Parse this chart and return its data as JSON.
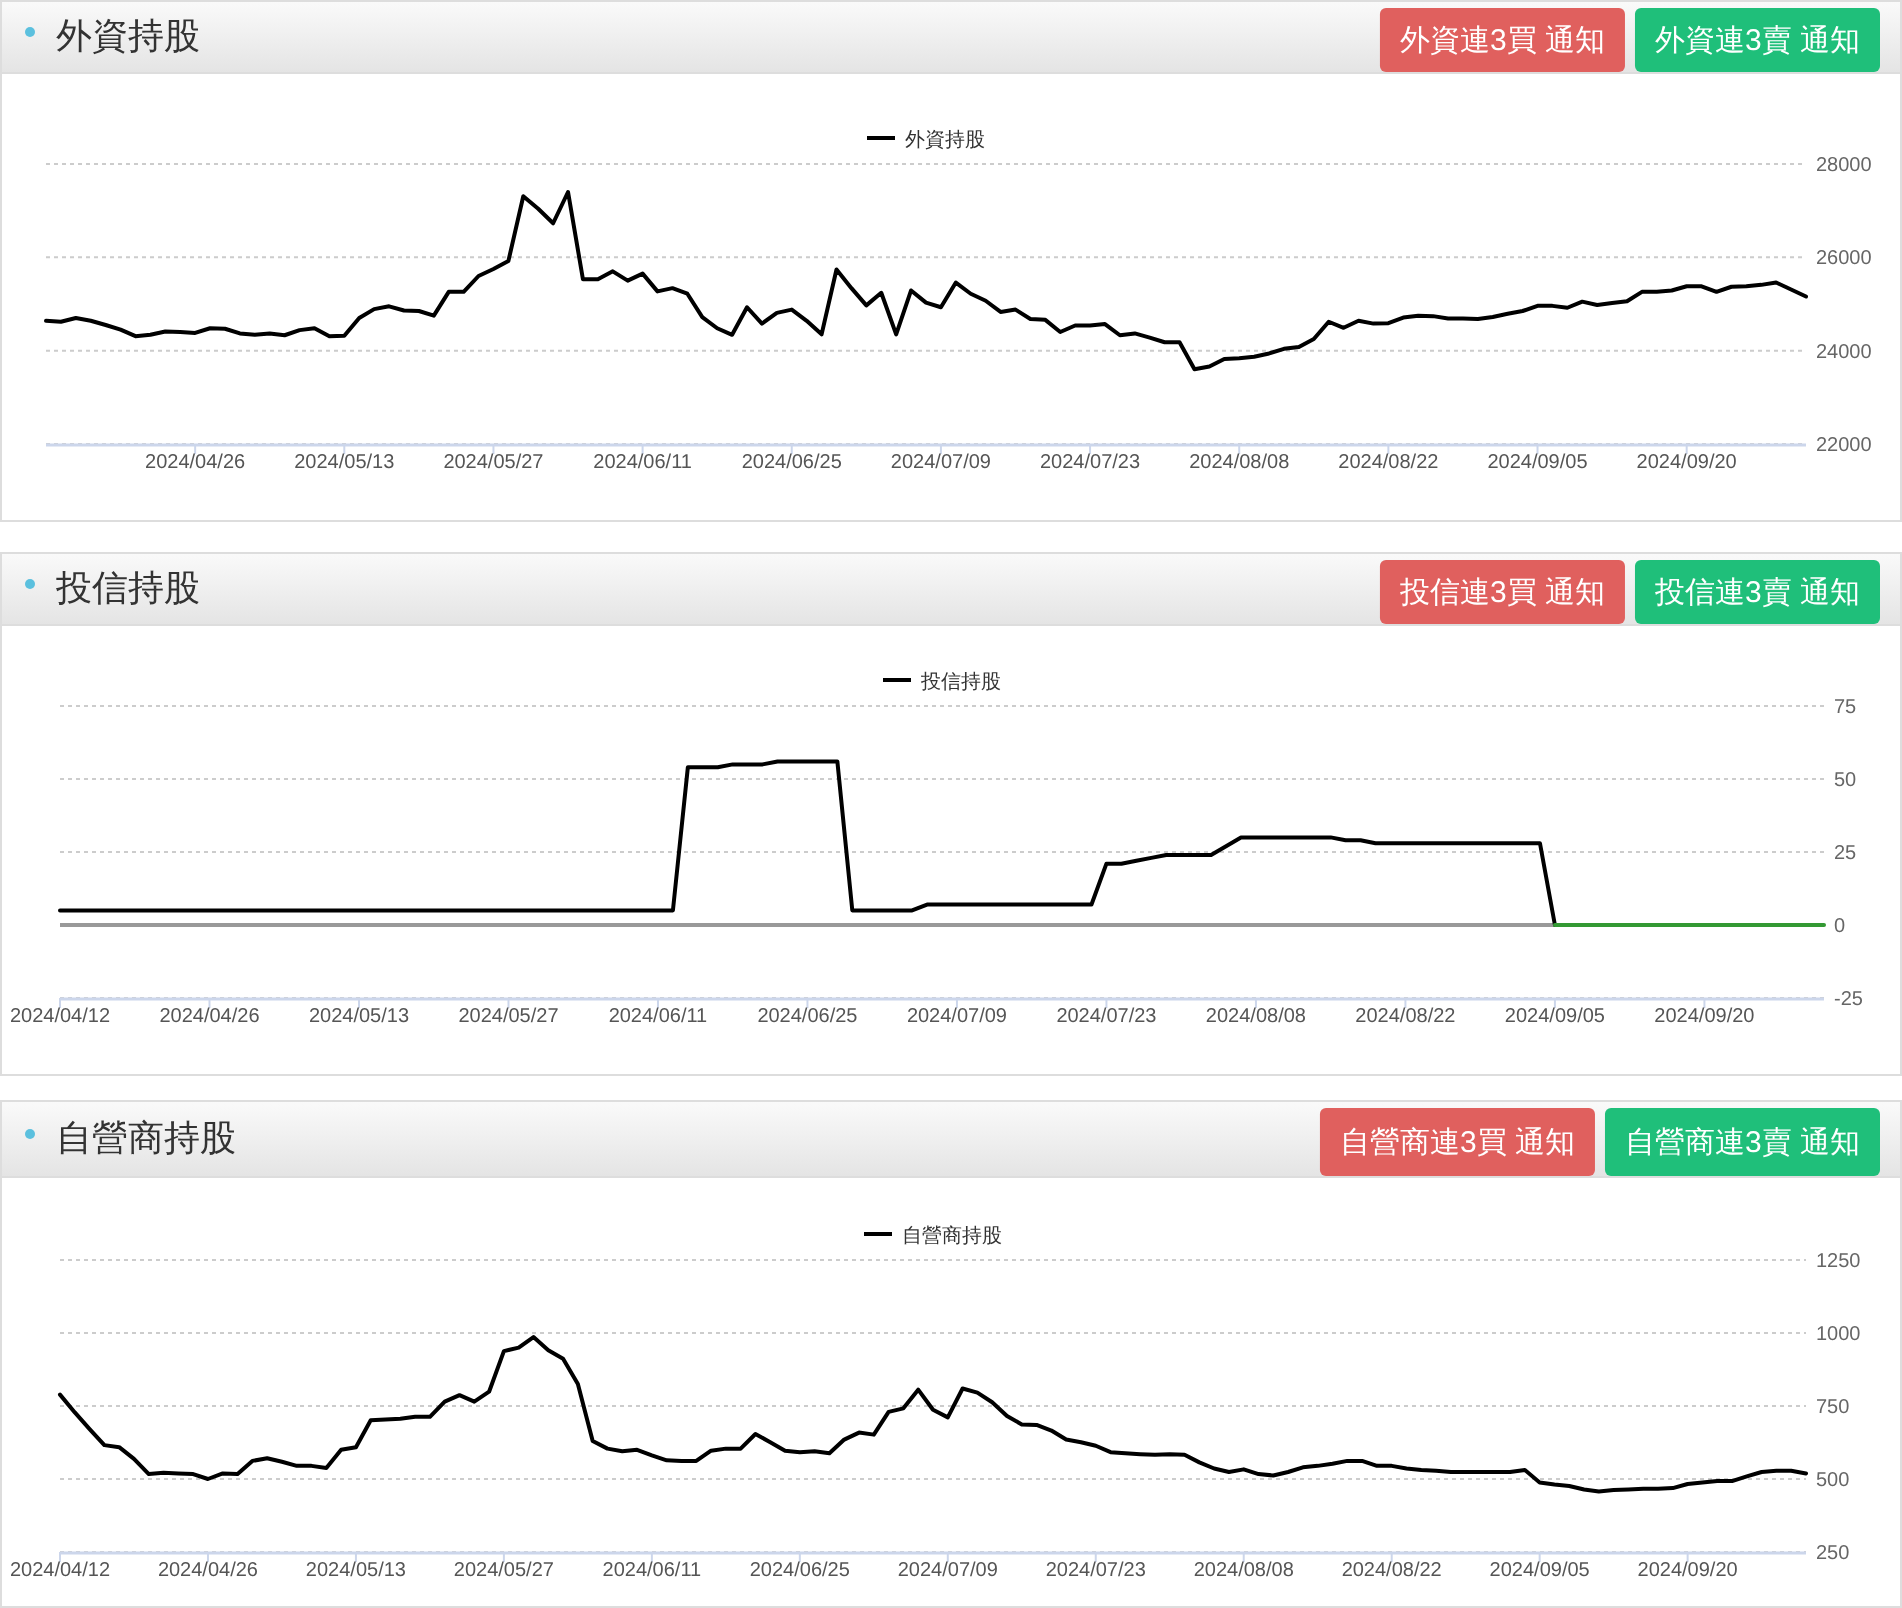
{
  "chart_data": [
    {
      "type": "line",
      "title": "外資持股",
      "annotations": [
        "外資連3買 通知",
        "外資連3賣 通知"
      ],
      "grid": "y",
      "legend": "top",
      "categories": [
        null,
        null,
        null,
        null,
        null,
        null,
        null,
        null,
        null,
        null,
        "2024/04/26",
        null,
        null,
        null,
        null,
        null,
        null,
        null,
        null,
        null,
        "2024/05/13",
        null,
        null,
        null,
        null,
        null,
        null,
        null,
        null,
        null,
        "2024/05/27",
        null,
        null,
        null,
        null,
        null,
        null,
        null,
        null,
        null,
        "2024/06/11",
        null,
        null,
        null,
        null,
        null,
        null,
        null,
        null,
        null,
        "2024/06/25",
        null,
        null,
        null,
        null,
        null,
        null,
        null,
        null,
        null,
        "2024/07/09",
        null,
        null,
        null,
        null,
        null,
        null,
        null,
        null,
        null,
        "2024/07/23",
        null,
        null,
        null,
        null,
        null,
        null,
        null,
        null,
        null,
        "2024/08/08",
        null,
        null,
        null,
        null,
        null,
        null,
        null,
        null,
        null,
        "2024/08/22",
        null,
        null,
        null,
        null,
        null,
        null,
        null,
        null,
        null,
        "2024/09/05",
        null,
        null,
        null,
        null,
        null,
        null,
        null,
        null,
        null,
        "2024/09/20",
        null,
        null,
        null,
        null,
        null,
        null,
        null,
        null
      ],
      "series": [
        {
          "name": "外資持股",
          "color": "#000000",
          "values": [
            24640,
            24620,
            24700,
            24640,
            24550,
            24450,
            24310,
            24340,
            24410,
            24400,
            24380,
            24480,
            24470,
            24370,
            24340,
            24370,
            24330,
            24440,
            24480,
            24310,
            24320,
            24700,
            24890,
            24950,
            24860,
            24850,
            24750,
            25260,
            25260,
            25600,
            25750,
            25920,
            27310,
            27040,
            26730,
            27400,
            25530,
            25530,
            25700,
            25500,
            25650,
            25270,
            25340,
            25220,
            24720,
            24480,
            24340,
            24930,
            24580,
            24810,
            24880,
            24640,
            24350,
            25740,
            25340,
            24970,
            25240,
            24350,
            25290,
            25030,
            24930,
            25460,
            25220,
            25070,
            24830,
            24880,
            24680,
            24660,
            24400,
            24540,
            24540,
            24570,
            24330,
            24370,
            24280,
            24180,
            24180,
            23600,
            23660,
            23820,
            23840,
            23870,
            23940,
            24040,
            24080,
            24250,
            24620,
            24490,
            24640,
            24580,
            24590,
            24710,
            24750,
            24740,
            24690,
            24690,
            24680,
            24720,
            24790,
            24850,
            24960,
            24960,
            24920,
            25050,
            24980,
            25020,
            25060,
            25260,
            25260,
            25290,
            25380,
            25380,
            25260,
            25370,
            25380,
            25410,
            25460,
            25310,
            25160
          ]
        }
      ],
      "ylim": [
        22000,
        28000
      ],
      "yticks": [
        22000,
        24000,
        26000,
        28000
      ]
    },
    {
      "type": "line",
      "title": "投信持股",
      "annotations": [
        "投信連3買 通知",
        "投信連3賣 通知"
      ],
      "grid": "y",
      "legend": "top",
      "categories": [
        "2024/04/12",
        null,
        null,
        null,
        null,
        null,
        null,
        null,
        null,
        null,
        "2024/04/26",
        null,
        null,
        null,
        null,
        null,
        null,
        null,
        null,
        null,
        "2024/05/13",
        null,
        null,
        null,
        null,
        null,
        null,
        null,
        null,
        null,
        "2024/05/27",
        null,
        null,
        null,
        null,
        null,
        null,
        null,
        null,
        null,
        "2024/06/11",
        null,
        null,
        null,
        null,
        null,
        null,
        null,
        null,
        null,
        "2024/06/25",
        null,
        null,
        null,
        null,
        null,
        null,
        null,
        null,
        null,
        "2024/07/09",
        null,
        null,
        null,
        null,
        null,
        null,
        null,
        null,
        null,
        "2024/07/23",
        null,
        null,
        null,
        null,
        null,
        null,
        null,
        null,
        null,
        "2024/08/08",
        null,
        null,
        null,
        null,
        null,
        null,
        null,
        null,
        null,
        "2024/08/22",
        null,
        null,
        null,
        null,
        null,
        null,
        null,
        null,
        null,
        "2024/09/05",
        null,
        null,
        null,
        null,
        null,
        null,
        null,
        null,
        null,
        "2024/09/20",
        null,
        null,
        null,
        null,
        null,
        null,
        null,
        null
      ],
      "series": [
        {
          "name": "投信持股",
          "color": "#000000",
          "values": [
            5,
            5,
            5,
            5,
            5,
            5,
            5,
            5,
            5,
            5,
            5,
            5,
            5,
            5,
            5,
            5,
            5,
            5,
            5,
            5,
            5,
            5,
            5,
            5,
            5,
            5,
            5,
            5,
            5,
            5,
            5,
            5,
            5,
            5,
            5,
            5,
            5,
            5,
            5,
            5,
            5,
            5,
            54,
            54,
            54,
            55,
            55,
            55,
            56,
            56,
            56,
            56,
            56,
            5,
            5,
            5,
            5,
            5,
            7,
            7,
            7,
            7,
            7,
            7,
            7,
            7,
            7,
            7,
            7,
            7,
            21,
            21,
            22,
            23,
            24,
            24,
            24,
            24,
            27,
            30,
            30,
            30,
            30,
            30,
            30,
            30,
            29,
            29,
            28,
            28,
            28,
            28,
            28,
            28,
            28,
            28,
            28,
            28,
            28,
            28,
            0,
            null,
            null,
            null,
            null,
            null,
            null,
            null,
            null,
            null,
            null,
            null,
            null,
            null,
            null,
            null,
            null,
            null,
            null
          ]
        },
        {
          "color": "#339933",
          "values": [
            null,
            null,
            null,
            null,
            null,
            null,
            null,
            null,
            null,
            null,
            null,
            null,
            null,
            null,
            null,
            null,
            null,
            null,
            null,
            null,
            null,
            null,
            null,
            null,
            null,
            null,
            null,
            null,
            null,
            null,
            null,
            null,
            null,
            null,
            null,
            null,
            null,
            null,
            null,
            null,
            null,
            null,
            null,
            null,
            null,
            null,
            null,
            null,
            null,
            null,
            null,
            null,
            null,
            null,
            null,
            null,
            null,
            null,
            null,
            null,
            null,
            null,
            null,
            null,
            null,
            null,
            null,
            null,
            null,
            null,
            null,
            null,
            null,
            null,
            null,
            null,
            null,
            null,
            null,
            null,
            null,
            null,
            null,
            null,
            null,
            null,
            null,
            null,
            null,
            null,
            null,
            null,
            null,
            null,
            null,
            null,
            null,
            null,
            null,
            null,
            0,
            0,
            0,
            0,
            0,
            0,
            0,
            0,
            0,
            0,
            0,
            0,
            0,
            0,
            0,
            0,
            0,
            0,
            0
          ]
        }
      ],
      "ylim": [
        -25,
        75
      ],
      "yticks": [
        -25,
        0,
        25,
        50,
        75
      ],
      "ref_lines": [
        {
          "axis": "y",
          "value": 0,
          "color": "#999999"
        }
      ]
    },
    {
      "type": "line",
      "title": "自營商持股",
      "annotations": [
        "自營商連3買 通知",
        "自營商連3賣 通知"
      ],
      "grid": "y",
      "legend": "top",
      "categories": [
        "2024/04/12",
        null,
        null,
        null,
        null,
        null,
        null,
        null,
        null,
        null,
        "2024/04/26",
        null,
        null,
        null,
        null,
        null,
        null,
        null,
        null,
        null,
        "2024/05/13",
        null,
        null,
        null,
        null,
        null,
        null,
        null,
        null,
        null,
        "2024/05/27",
        null,
        null,
        null,
        null,
        null,
        null,
        null,
        null,
        null,
        "2024/06/11",
        null,
        null,
        null,
        null,
        null,
        null,
        null,
        null,
        null,
        "2024/06/25",
        null,
        null,
        null,
        null,
        null,
        null,
        null,
        null,
        null,
        "2024/07/09",
        null,
        null,
        null,
        null,
        null,
        null,
        null,
        null,
        null,
        "2024/07/23",
        null,
        null,
        null,
        null,
        null,
        null,
        null,
        null,
        null,
        "2024/08/08",
        null,
        null,
        null,
        null,
        null,
        null,
        null,
        null,
        null,
        "2024/08/22",
        null,
        null,
        null,
        null,
        null,
        null,
        null,
        null,
        null,
        "2024/09/05",
        null,
        null,
        null,
        null,
        null,
        null,
        null,
        null,
        null,
        "2024/09/20",
        null,
        null,
        null,
        null,
        null,
        null,
        null,
        null
      ],
      "series": [
        {
          "name": "自營商持股",
          "color": "#000000",
          "values": [
            789,
            728,
            671,
            616,
            609,
            569,
            517,
            521,
            519,
            517,
            500,
            519,
            517,
            562,
            571,
            559,
            545,
            545,
            538,
            600,
            609,
            701,
            704,
            706,
            713,
            713,
            765,
            787,
            765,
            799,
            938,
            950,
            986,
            941,
            912,
            825,
            630,
            604,
            595,
            600,
            581,
            564,
            562,
            562,
            597,
            604,
            604,
            654,
            626,
            597,
            592,
            595,
            588,
            635,
            659,
            652,
            730,
            742,
            806,
            737,
            711,
            810,
            796,
            763,
            716,
            687,
            685,
            666,
            635,
            626,
            614,
            592,
            588,
            585,
            583,
            585,
            583,
            557,
            536,
            524,
            533,
            517,
            512,
            524,
            540,
            545,
            552,
            562,
            562,
            545,
            545,
            536,
            531,
            528,
            524,
            524,
            524,
            524,
            524,
            531,
            488,
            481,
            476,
            464,
            457,
            462,
            464,
            467,
            467,
            469,
            483,
            488,
            493,
            493,
            509,
            524,
            528,
            528,
            519
          ]
        }
      ],
      "ylim": [
        250,
        1250
      ],
      "yticks": [
        250,
        500,
        750,
        1000,
        1250
      ]
    }
  ]
}
